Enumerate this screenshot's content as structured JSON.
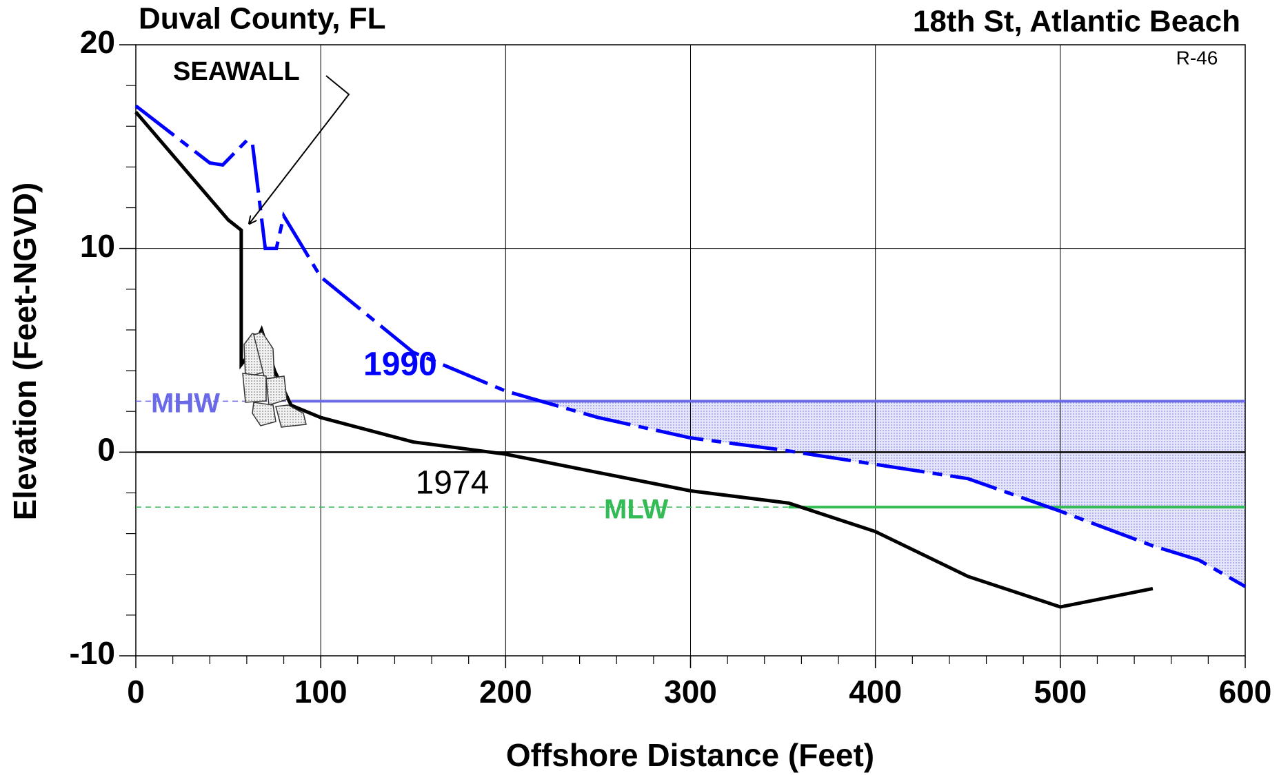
{
  "chart_data": {
    "type": "line",
    "title": "Duval County, FL",
    "subtitle": "18th St, Atlantic Beach",
    "profile_id": "R-46",
    "x_label": "Offshore Distance (Feet)",
    "y_label": "Elevation (Feet-NGVD)",
    "xlim": [
      0,
      600
    ],
    "ylim": [
      -10,
      20
    ],
    "xticks": [
      0,
      100,
      200,
      300,
      400,
      500,
      600
    ],
    "yticks": [
      -10,
      0,
      10,
      20
    ],
    "xminorticks": [
      20,
      40,
      60,
      80,
      120,
      140,
      160,
      180,
      220,
      240,
      260,
      280,
      320,
      340,
      360,
      380,
      420,
      440,
      460,
      480,
      520,
      540,
      560,
      580
    ],
    "yminorticks": [
      -8,
      -6,
      -4,
      -2,
      2,
      4,
      6,
      8,
      12,
      14,
      16,
      18
    ],
    "grid": true,
    "series": [
      {
        "name": "1974",
        "color": "#000000",
        "x": [
          0,
          50,
          57,
          57,
          63,
          68,
          75,
          84,
          100,
          150,
          200,
          250,
          300,
          353,
          400,
          450,
          500,
          550
        ],
        "values": [
          16.7,
          11.4,
          10.9,
          4.3,
          5,
          6,
          4,
          2.3,
          1.7,
          0.5,
          -0.1,
          -1.0,
          -1.9,
          -2.5,
          -3.9,
          -6.1,
          -7.6,
          -6.7
        ]
      },
      {
        "name": "1990",
        "color": "#0000ff",
        "x": [
          0,
          40,
          47,
          60,
          63,
          70,
          76,
          80,
          100,
          150,
          200,
          250,
          300,
          350,
          400,
          450,
          500,
          550,
          575,
          600
        ],
        "values": [
          17,
          14.2,
          14.1,
          15.3,
          15.2,
          10,
          10,
          11.6,
          8.6,
          4.9,
          3.0,
          1.7,
          0.7,
          0.1,
          -0.6,
          -1.3,
          -2.9,
          -4.6,
          -5.3,
          -6.6
        ]
      }
    ],
    "reference_lines": [
      {
        "name": "MHW",
        "value": 2.5,
        "color": "#6a6ae8",
        "solid_from": 84
      },
      {
        "name": "MLW",
        "value": -2.7,
        "color": "#33bb55",
        "solid_from": 353
      }
    ],
    "annotation": "SEAWALL"
  }
}
